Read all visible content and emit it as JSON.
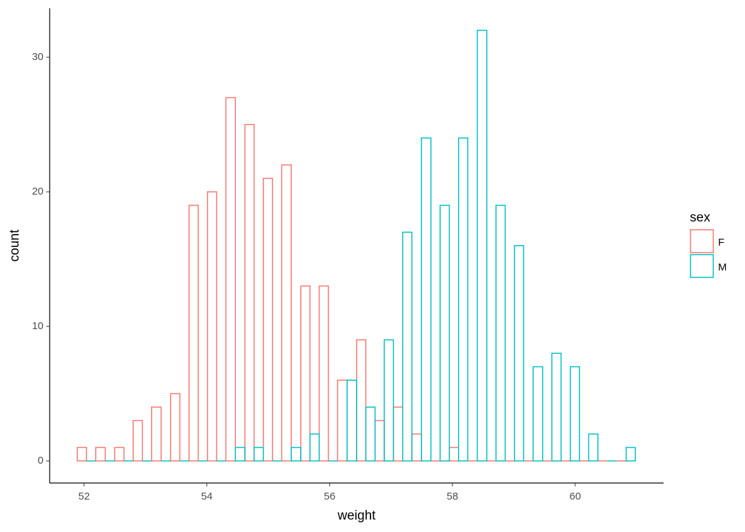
{
  "chart_data": {
    "type": "histogram",
    "x_label": "weight",
    "y_label": "count",
    "bins": [
      51.89,
      52.19,
      52.5,
      52.8,
      53.1,
      53.41,
      53.71,
      54.01,
      54.31,
      54.62,
      54.92,
      55.22,
      55.53,
      55.83,
      56.13,
      56.44,
      56.74,
      57.04,
      57.34,
      57.65,
      57.95,
      58.25,
      58.56,
      58.86,
      59.16,
      59.47,
      59.77,
      60.07,
      60.37,
      60.68,
      60.98
    ],
    "series": [
      {
        "name": "F",
        "color": "#F8766D",
        "values": [
          1,
          1,
          1,
          3,
          4,
          5,
          19,
          20,
          27,
          25,
          21,
          22,
          13,
          13,
          6,
          9,
          3,
          4,
          2,
          0,
          1,
          0,
          0,
          0,
          0,
          0,
          0,
          0,
          0,
          0
        ]
      },
      {
        "name": "M",
        "color": "#00BFC4",
        "values": [
          0,
          0,
          0,
          0,
          0,
          0,
          0,
          0,
          1,
          1,
          0,
          1,
          2,
          0,
          6,
          4,
          9,
          17,
          24,
          19,
          24,
          32,
          19,
          16,
          7,
          8,
          7,
          2,
          0,
          1
        ]
      }
    ],
    "legend_title": "sex",
    "xlim": [
      51.44,
      61.44
    ],
    "xticks": [
      52,
      54,
      56,
      58,
      60
    ],
    "ylim": [
      -1.64,
      33.64
    ],
    "yticks": [
      0,
      10,
      20,
      30
    ],
    "grid": false
  }
}
